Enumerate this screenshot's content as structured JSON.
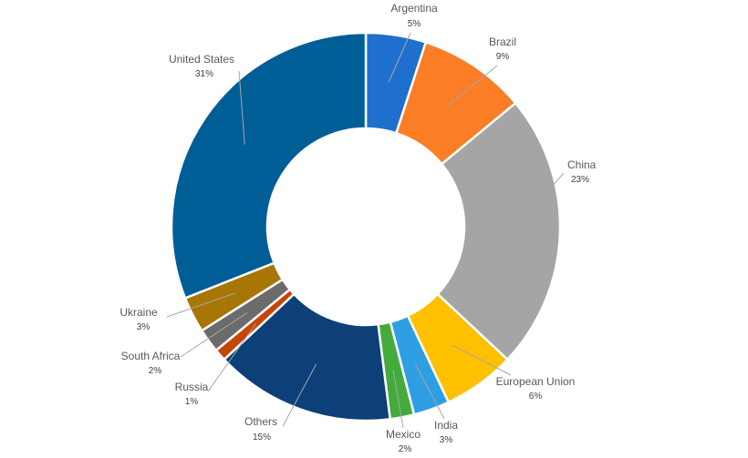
{
  "chart_data": {
    "type": "pie",
    "variant": "donut",
    "title": "",
    "legend": "none",
    "slices": [
      {
        "label": "Argentina",
        "value": 5,
        "display": "5%",
        "color": "#1f6fcf"
      },
      {
        "label": "Brazil",
        "value": 9,
        "display": "9%",
        "color": "#fb7d26"
      },
      {
        "label": "China",
        "value": 23,
        "display": "23%",
        "color": "#a5a5a5"
      },
      {
        "label": "European Union",
        "value": 6,
        "display": "6%",
        "color": "#ffc000"
      },
      {
        "label": "India",
        "value": 3,
        "display": "3%",
        "color": "#2e9fe3"
      },
      {
        "label": "Mexico",
        "value": 2,
        "display": "2%",
        "color": "#43ab3c"
      },
      {
        "label": "Others",
        "value": 15,
        "display": "15%",
        "color": "#0d3f79"
      },
      {
        "label": "Russia",
        "value": 1,
        "display": "1%",
        "color": "#c54504"
      },
      {
        "label": "South Africa",
        "value": 2,
        "display": "2%",
        "color": "#6b6b6b"
      },
      {
        "label": "Ukraine",
        "value": 3,
        "display": "3%",
        "color": "#a87605"
      },
      {
        "label": "United States",
        "value": 31,
        "display": "31%",
        "color": "#005e97"
      }
    ]
  }
}
